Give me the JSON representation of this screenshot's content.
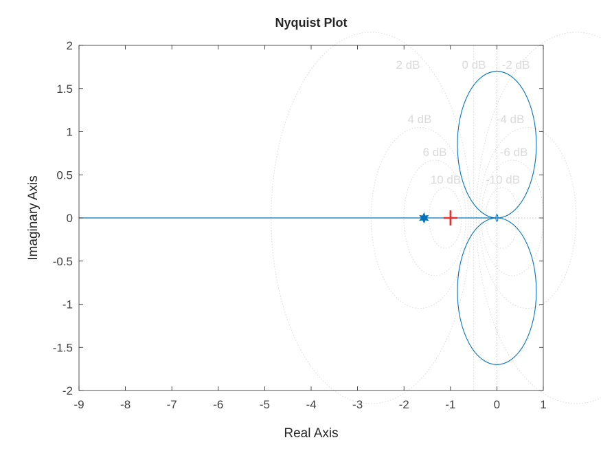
{
  "chart_data": {
    "type": "line",
    "title": "Nyquist Plot",
    "xlabel": "Real Axis",
    "ylabel": "Imaginary Axis",
    "xlim": [
      -9,
      1
    ],
    "ylim": [
      -2,
      2
    ],
    "xticks": [
      -9,
      -8,
      -7,
      -6,
      -5,
      -4,
      -3,
      -2,
      -1,
      0,
      1
    ],
    "yticks": [
      -2,
      -1.5,
      -1,
      -0.5,
      0,
      0.5,
      1,
      1.5,
      2
    ],
    "xtick_labels": [
      "-9",
      "-8",
      "-7",
      "-6",
      "-5",
      "-4",
      "-3",
      "-2",
      "-1",
      "0",
      "1"
    ],
    "ytick_labels": [
      "-2",
      "-1.5",
      "-1",
      "-0.5",
      "0",
      "0.5",
      "1",
      "1.5",
      "2"
    ],
    "grid": "M-circles (dB)",
    "grid_labels": [
      "2 dB",
      "0 dB",
      "-2 dB",
      "4 dB",
      "-4 dB",
      "6 dB",
      "-6 dB",
      "10 dB",
      "-10 dB"
    ],
    "grid_db_values": [
      2,
      0,
      -2,
      4,
      -4,
      6,
      -6,
      10,
      -10
    ],
    "series": [
      {
        "color": "#0072bd",
        "lobes": [
          {
            "center": [
              0,
              0.85
            ],
            "radius_x": 0.85,
            "radius_y": 0.85
          },
          {
            "center": [
              0,
              -0.85
            ],
            "radius_x": 0.85,
            "radius_y": 0.85
          }
        ],
        "real_axis_segment": [
          -9,
          0
        ],
        "small_loop": {
          "center": [
            0,
            0
          ],
          "radius_x": 0.02,
          "radius_y": 0.04
        },
        "marker": {
          "x": -1.57,
          "y": 0,
          "symbol": "star"
        }
      }
    ],
    "critical_point": {
      "x": -1,
      "y": 0,
      "color": "#e8302f",
      "symbol": "plus"
    },
    "colors": {
      "curve": "#0072bd",
      "critical": "#e8302f",
      "grid": "#d9d9d9",
      "axes": "#262626"
    }
  }
}
